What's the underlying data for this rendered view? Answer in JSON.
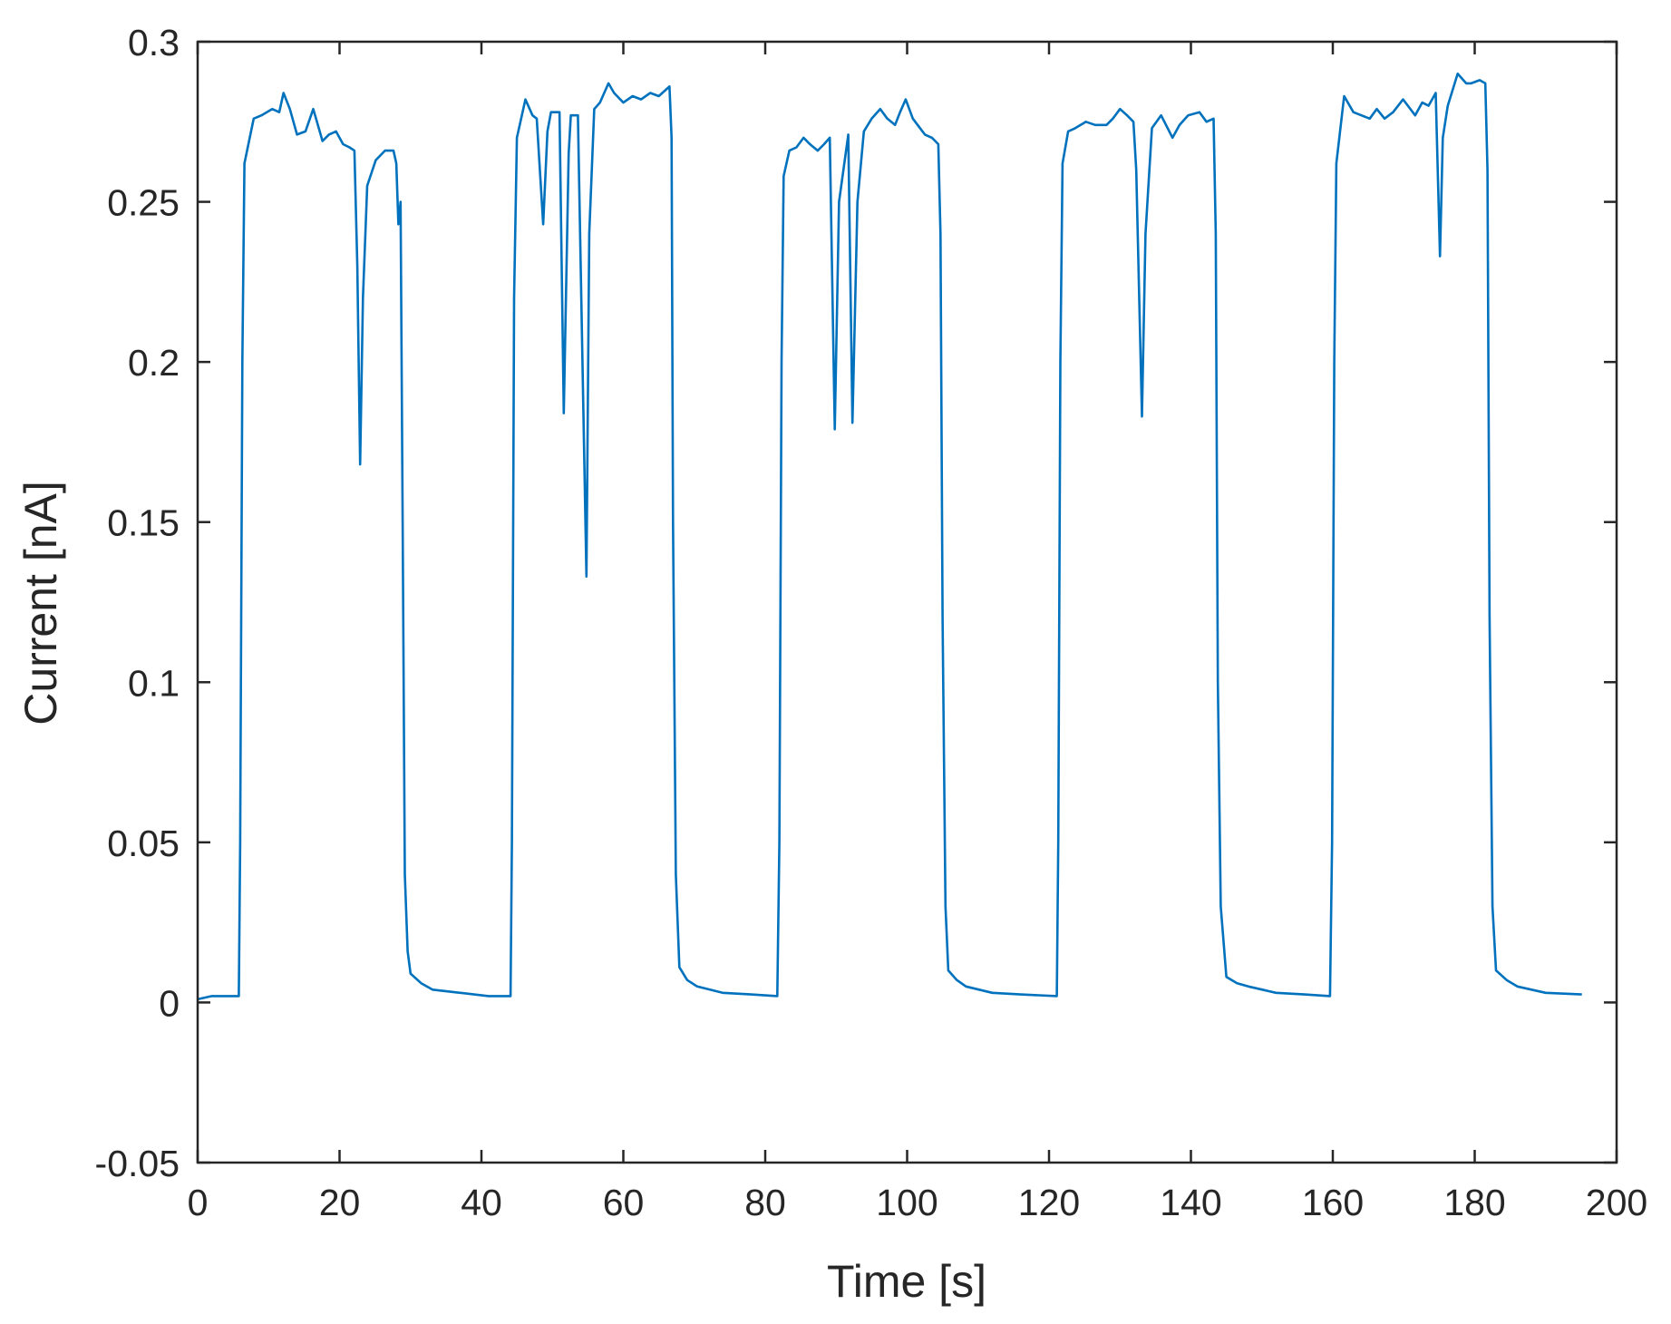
{
  "chart_data": {
    "type": "line",
    "title": "",
    "xlabel": "Time [s]",
    "ylabel": "Current [nA]",
    "xlim": [
      0,
      200
    ],
    "ylim": [
      -0.05,
      0.3
    ],
    "xticks": [
      0,
      20,
      40,
      60,
      80,
      100,
      120,
      140,
      160,
      180,
      200
    ],
    "xtick_labels": [
      "0",
      "20",
      "40",
      "60",
      "80",
      "100",
      "120",
      "140",
      "160",
      "180",
      "200"
    ],
    "yticks": [
      -0.05,
      0,
      0.05,
      0.1,
      0.15,
      0.2,
      0.25,
      0.3
    ],
    "ytick_labels": [
      "-0.05",
      "0",
      "0.05",
      "0.1",
      "0.15",
      "0.2",
      "0.25",
      "0.3"
    ],
    "grid": false,
    "legend": null,
    "line_color": "#0072BD",
    "axis_color": "#262626",
    "series": [
      {
        "name": "Current",
        "x": [
          0,
          2,
          5.8,
          6.0,
          6.3,
          6.6,
          7.9,
          9.0,
          10.5,
          11.5,
          12.1,
          13.0,
          14.0,
          15.2,
          16.3,
          17.6,
          18.5,
          19.5,
          20.5,
          21.4,
          22.1,
          22.5,
          22.9,
          23.3,
          23.9,
          25.1,
          26.4,
          27.6,
          28.0,
          28.3,
          28.6,
          28.9,
          29.2,
          29.6,
          30.0,
          31.5,
          33.1,
          37.0,
          41.0,
          44.1,
          44.3,
          44.6,
          45.0,
          46.2,
          47.2,
          47.8,
          48.7,
          49.3,
          49.8,
          51.0,
          51.6,
          52.3,
          52.6,
          53.6,
          54.8,
          55.2,
          55.9,
          56.7,
          57.9,
          58.7,
          60.0,
          61.3,
          62.5,
          63.8,
          65.0,
          66.5,
          66.8,
          67.0,
          67.4,
          67.9,
          69.0,
          70.4,
          74.0,
          78.0,
          81.7,
          82.0,
          82.3,
          82.6,
          83.4,
          84.4,
          85.4,
          86.3,
          87.4,
          88.3,
          89.1,
          89.8,
          90.4,
          91.7,
          92.3,
          93.0,
          93.9,
          95.0,
          96.2,
          97.2,
          98.3,
          99.0,
          99.8,
          100.8,
          102.5,
          103.5,
          104.4,
          104.7,
          105.0,
          105.4,
          105.8,
          107.0,
          108.3,
          112.0,
          116.0,
          121.1,
          121.3,
          121.6,
          121.9,
          122.7,
          123.7,
          125.2,
          126.5,
          128.1,
          129.0,
          130.0,
          131.0,
          131.9,
          132.3,
          133.1,
          133.6,
          134.5,
          135.8,
          137.4,
          138.4,
          139.6,
          141.2,
          142.2,
          143.2,
          143.5,
          143.8,
          144.2,
          145.0,
          146.5,
          148.1,
          152.0,
          156.0,
          159.6,
          159.9,
          160.2,
          160.5,
          161.6,
          162.9,
          165.2,
          166.2,
          167.3,
          168.5,
          169.9,
          171.6,
          172.6,
          173.5,
          174.5,
          175.1,
          175.5,
          176.2,
          177.6,
          178.8,
          179.5,
          180.7,
          181.5,
          181.8,
          182.1,
          182.5,
          183.0,
          184.5,
          186.0,
          190.0,
          195.1
        ],
        "y": [
          0.001,
          0.002,
          0.002,
          0.05,
          0.2,
          0.262,
          0.276,
          0.277,
          0.279,
          0.278,
          0.284,
          0.279,
          0.271,
          0.272,
          0.279,
          0.269,
          0.271,
          0.272,
          0.268,
          0.267,
          0.266,
          0.23,
          0.168,
          0.22,
          0.255,
          0.263,
          0.266,
          0.266,
          0.262,
          0.243,
          0.25,
          0.15,
          0.04,
          0.016,
          0.009,
          0.006,
          0.004,
          0.003,
          0.002,
          0.002,
          0.05,
          0.22,
          0.27,
          0.282,
          0.277,
          0.276,
          0.243,
          0.272,
          0.278,
          0.278,
          0.184,
          0.265,
          0.277,
          0.277,
          0.133,
          0.24,
          0.279,
          0.281,
          0.287,
          0.284,
          0.281,
          0.283,
          0.282,
          0.284,
          0.283,
          0.286,
          0.27,
          0.15,
          0.04,
          0.011,
          0.007,
          0.005,
          0.003,
          0.0025,
          0.002,
          0.05,
          0.2,
          0.258,
          0.266,
          0.267,
          0.27,
          0.268,
          0.266,
          0.268,
          0.27,
          0.179,
          0.25,
          0.271,
          0.181,
          0.25,
          0.272,
          0.276,
          0.279,
          0.276,
          0.274,
          0.278,
          0.282,
          0.276,
          0.271,
          0.27,
          0.268,
          0.24,
          0.12,
          0.03,
          0.01,
          0.007,
          0.005,
          0.003,
          0.0025,
          0.002,
          0.05,
          0.2,
          0.262,
          0.272,
          0.273,
          0.275,
          0.274,
          0.274,
          0.276,
          0.279,
          0.277,
          0.275,
          0.26,
          0.183,
          0.24,
          0.273,
          0.277,
          0.27,
          0.274,
          0.277,
          0.278,
          0.275,
          0.276,
          0.24,
          0.1,
          0.03,
          0.008,
          0.006,
          0.005,
          0.003,
          0.0025,
          0.002,
          0.05,
          0.2,
          0.262,
          0.283,
          0.278,
          0.276,
          0.279,
          0.276,
          0.278,
          0.282,
          0.277,
          0.281,
          0.28,
          0.284,
          0.233,
          0.27,
          0.28,
          0.29,
          0.287,
          0.287,
          0.288,
          0.287,
          0.26,
          0.12,
          0.03,
          0.01,
          0.007,
          0.005,
          0.003,
          0.0025
        ]
      }
    ]
  }
}
